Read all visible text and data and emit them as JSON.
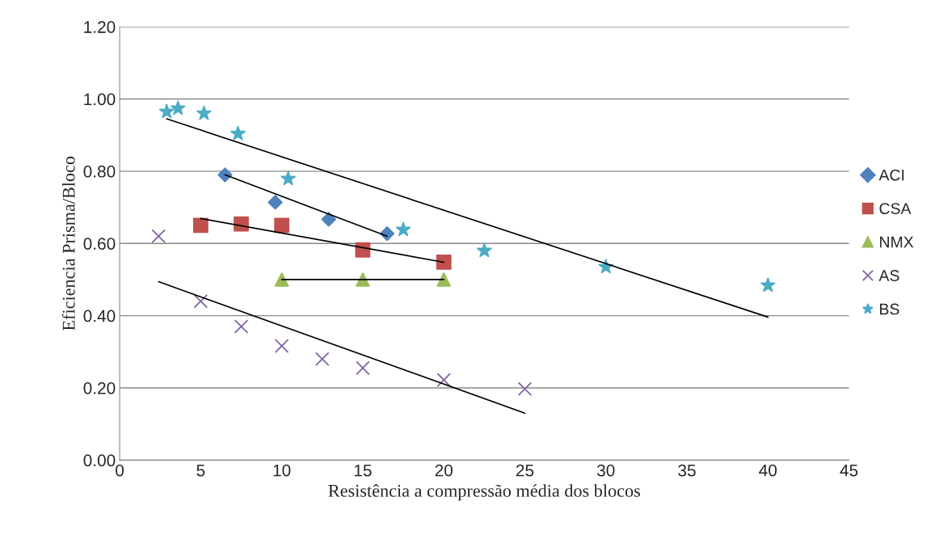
{
  "chart_data": {
    "type": "scatter",
    "xlabel": "Resistência a compressão média dos blocos",
    "ylabel": "Eficiencia Prisma/Bloco",
    "xlim": [
      0,
      45
    ],
    "xticks": [
      0,
      5,
      10,
      15,
      20,
      25,
      30,
      35,
      40,
      45
    ],
    "ylim": [
      0,
      1.2
    ],
    "yticks": [
      {
        "value": 0,
        "label": "0.00"
      },
      {
        "value": 0.2,
        "label": "0.20"
      },
      {
        "value": 0.4,
        "label": "0.40"
      },
      {
        "value": 0.6,
        "label": "0.60"
      },
      {
        "value": 0.8,
        "label": "0.80"
      },
      {
        "value": 1.0,
        "label": "1.00"
      },
      {
        "value": 1.2,
        "label": "1.20"
      }
    ],
    "grid": "y",
    "legend": "right",
    "series": [
      {
        "name": "ACI",
        "type": "scatter",
        "marker": "diamond",
        "color": "#4f81bd",
        "x": [
          6.5,
          9.6,
          12.9,
          16.5
        ],
        "values": [
          0.79,
          0.714,
          0.667,
          0.627
        ]
      },
      {
        "name": "CSA",
        "type": "scatter",
        "marker": "square",
        "color": "#c0504d",
        "x": [
          5,
          7.5,
          10,
          15,
          20
        ],
        "values": [
          0.65,
          0.654,
          0.65,
          0.582,
          0.548
        ]
      },
      {
        "name": "NMX",
        "type": "scatter",
        "marker": "triangle",
        "color": "#9bbb59",
        "x": [
          10,
          15,
          20
        ],
        "values": [
          0.5,
          0.5,
          0.5
        ]
      },
      {
        "name": "AS",
        "type": "scatter",
        "marker": "cross",
        "color": "#8064a2",
        "x": [
          2.4,
          5,
          7.5,
          10,
          12.5,
          15,
          20,
          25
        ],
        "values": [
          0.62,
          0.44,
          0.37,
          0.316,
          0.28,
          0.255,
          0.222,
          0.197
        ]
      },
      {
        "name": "BS",
        "type": "scatter",
        "marker": "star",
        "color": "#4bacc6",
        "x": [
          2.9,
          3.6,
          5.2,
          7.3,
          10.4,
          17.5,
          22.5,
          30,
          40
        ],
        "values": [
          0.965,
          0.974,
          0.96,
          0.904,
          0.779,
          0.638,
          0.58,
          0.535,
          0.484
        ]
      },
      {
        "type": "line",
        "color": "#000000",
        "x": [
          6.5,
          16.5
        ],
        "values": [
          0.79,
          0.62
        ]
      },
      {
        "type": "line",
        "color": "#000000",
        "x": [
          5,
          20
        ],
        "values": [
          0.669,
          0.548
        ]
      },
      {
        "type": "line",
        "color": "#000000",
        "x": [
          10,
          20
        ],
        "values": [
          0.5,
          0.5
        ]
      },
      {
        "type": "line",
        "color": "#000000",
        "x": [
          2.4,
          25
        ],
        "values": [
          0.494,
          0.13
        ]
      },
      {
        "type": "line",
        "color": "#000000",
        "x": [
          2.9,
          40
        ],
        "values": [
          0.945,
          0.396
        ]
      }
    ]
  }
}
